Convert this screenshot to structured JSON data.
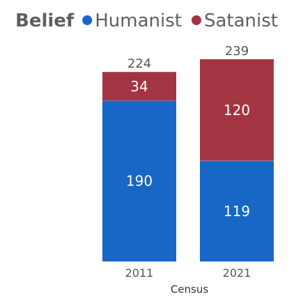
{
  "chart_data": {
    "type": "bar",
    "stacked": true,
    "legend_title": "Belief",
    "legend_position": "top-left",
    "xlabel": "Census",
    "categories": [
      "2011",
      "2021"
    ],
    "series": [
      {
        "name": "Humanist",
        "values": [
          190,
          119
        ],
        "color": "#1767c6"
      },
      {
        "name": "Satanist",
        "values": [
          34,
          120
        ],
        "color": "#a33542"
      }
    ],
    "totals": [
      224,
      239
    ],
    "ylim": [
      0,
      239
    ],
    "grid": false
  }
}
